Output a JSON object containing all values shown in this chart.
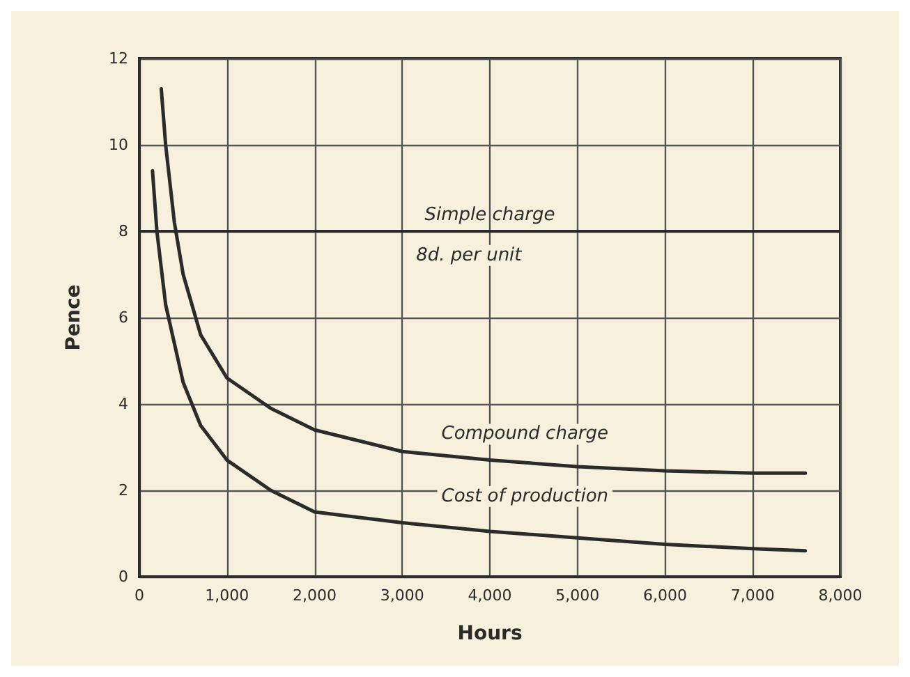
{
  "chart_data": {
    "type": "line",
    "xlabel": "Hours",
    "ylabel": "Pence",
    "xlim": [
      0,
      8000
    ],
    "xticks": [
      0,
      {
        "value": 1000,
        "label": "1,000"
      },
      {
        "value": 2000,
        "label": "2,000"
      },
      {
        "value": 3000,
        "label": "3,000"
      },
      {
        "value": 4000,
        "label": "4,000"
      },
      {
        "value": 5000,
        "label": "5,000"
      },
      {
        "value": 6000,
        "label": "6,000"
      },
      {
        "value": 7000,
        "label": "7,000"
      },
      {
        "value": 8000,
        "label": "8,000"
      }
    ],
    "ylim": [
      0,
      12
    ],
    "yticks": [
      0,
      2,
      4,
      6,
      8,
      10,
      12
    ],
    "grid": true,
    "marker": "none",
    "line_style": "solid",
    "series": [
      {
        "color": "#2b2b2b",
        "x": [
          250,
          300,
          400,
          500,
          700,
          1000,
          1500,
          2000,
          3000,
          4000,
          5000,
          6000,
          7000,
          7600
        ],
        "values": [
          11.3,
          10,
          8.2,
          7,
          5.6,
          4.6,
          3.9,
          3.4,
          2.9,
          2.7,
          2.55,
          2.45,
          2.4,
          2.4
        ]
      },
      {
        "color": "#2b2b2b",
        "x": [
          150,
          200,
          300,
          500,
          700,
          1000,
          1500,
          2000,
          3000,
          4000,
          5000,
          6000,
          7000,
          7600
        ],
        "values": [
          9.4,
          8,
          6.3,
          4.5,
          3.5,
          2.7,
          2,
          1.5,
          1.25,
          1.05,
          0.9,
          0.75,
          0.65,
          0.6
        ]
      }
    ],
    "ref_lines": [
      {
        "axis": "y",
        "value": 8,
        "label": "Simple charge",
        "color": "#2b2b2b"
      }
    ],
    "annotations": [
      "8d. per unit",
      "Compound charge",
      "Cost of production"
    ]
  }
}
